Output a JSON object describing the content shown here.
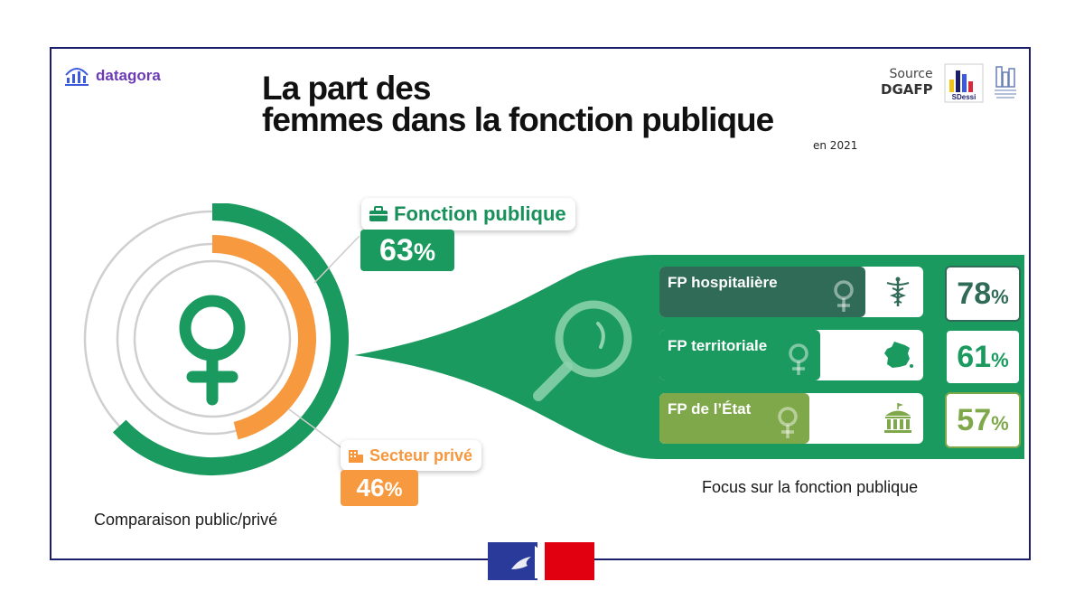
{
  "header": {
    "brand": "datagora",
    "title_line1": "La part des",
    "title_line2": "femmes dans la fonction publique",
    "year": "en 2021",
    "source_label": "Source",
    "source_value": "DGAFP",
    "logo_sdessi": "SDessi"
  },
  "colors": {
    "green": "#1a9a5e",
    "orange": "#f79a3f",
    "hospitaliere": "#2f6b57",
    "territoriale": "#1a9a5e",
    "etat": "#7fa84a",
    "navy": "#1b1f6b"
  },
  "labels": {
    "fonction_publique": "Fonction publique",
    "secteur_prive": "Secteur privé",
    "caption_left": "Comparaison public/privé",
    "caption_right": "Focus sur la fonction publique"
  },
  "chart_data": [
    {
      "type": "pie",
      "subtitle": "Comparaison public/privé",
      "series": [
        {
          "name": "Fonction publique",
          "value": 63,
          "display": "63",
          "unit": "%"
        },
        {
          "name": "Secteur privé",
          "value": 46,
          "display": "46",
          "unit": "%"
        }
      ]
    },
    {
      "type": "bar",
      "subtitle": "Focus sur la fonction publique",
      "categories": [
        "FP hospitalière",
        "FP territoriale",
        "FP de l’État"
      ],
      "values": [
        78,
        61,
        57
      ],
      "display": [
        "78",
        "61",
        "57"
      ],
      "unit": "%",
      "icons": [
        "caduceus-icon",
        "france-map-icon",
        "building-icon"
      ]
    }
  ]
}
